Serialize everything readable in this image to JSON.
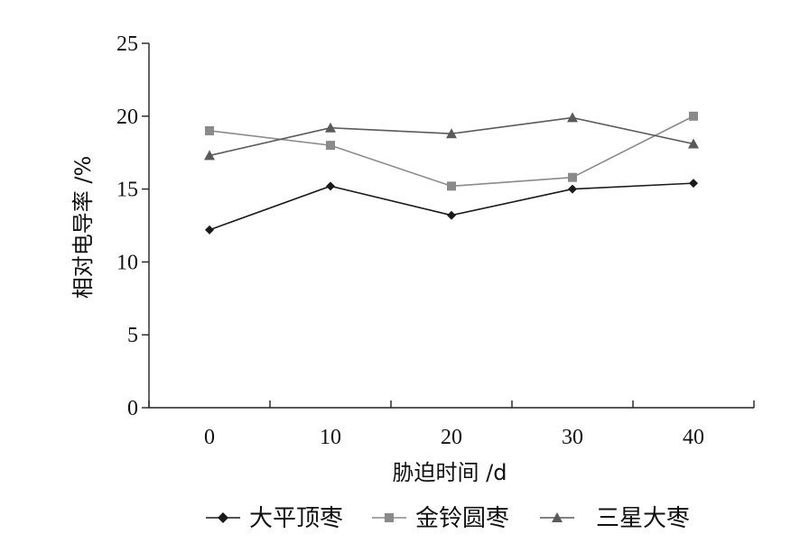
{
  "chart_data": {
    "type": "line",
    "x": [
      0,
      10,
      20,
      30,
      40
    ],
    "xticks": [
      "0",
      "10",
      "20",
      "30",
      "40"
    ],
    "xlim": [
      -5,
      45
    ],
    "yticks": [
      "0",
      "5",
      "10",
      "15",
      "20",
      "25"
    ],
    "ylim": [
      0,
      25
    ],
    "xlabel": "胁迫时间 /d",
    "ylabel": "相对电导率 /%",
    "legend_position": "bottom",
    "grid": false,
    "series": [
      {
        "name": "大平顶枣",
        "marker": "diamond",
        "color": "#1a1a1a",
        "values": [
          12.2,
          15.2,
          13.2,
          15.0,
          15.4
        ]
      },
      {
        "name": "金铃圆枣",
        "marker": "square",
        "color": "#8a8a8a",
        "values": [
          19.0,
          18.0,
          15.2,
          15.8,
          20.0
        ]
      },
      {
        "name": "三星大枣",
        "marker": "triangle",
        "color": "#5a5a5a",
        "values": [
          17.3,
          19.2,
          18.8,
          19.9,
          18.1
        ]
      }
    ]
  }
}
